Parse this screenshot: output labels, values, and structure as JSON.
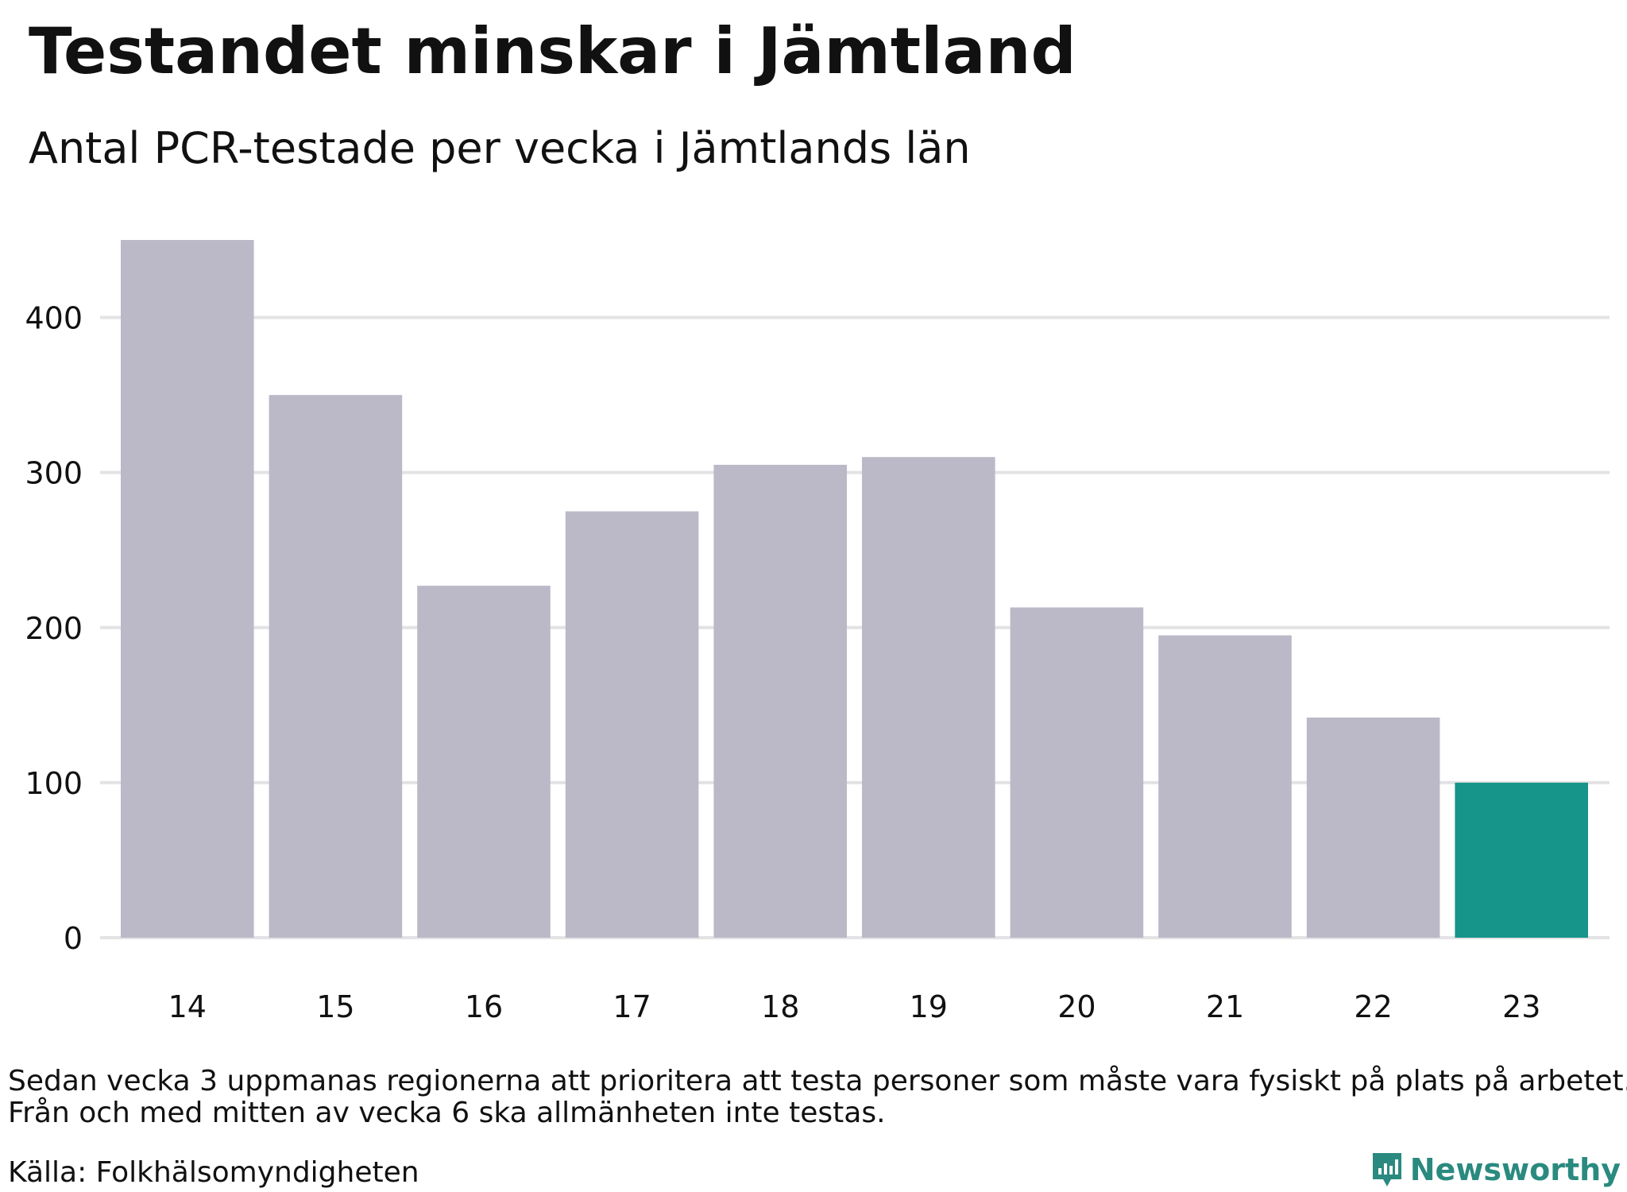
{
  "header": {
    "title": "Testandet minskar i Jämtland",
    "subtitle": "Antal PCR-testade per vecka i Jämtlands län"
  },
  "footer": {
    "note_line1": "Sedan vecka 3 uppmanas regionerna att prioritera att testa personer som måste vara fysiskt på plats på arbetet.",
    "note_line2": "Från och med mitten av vecka 6 ska allmänheten inte testas.",
    "source": "Källa: Folkhälsomyndigheten",
    "brand": "Newsworthy",
    "brand_icon": "newsworthy-logo-icon"
  },
  "colors": {
    "bar": "#bbb9c7",
    "highlight": "#16958a",
    "grid": "#e3e3e6",
    "brand": "#2a8a7f"
  },
  "chart_data": {
    "type": "bar",
    "title": "Testandet minskar i Jämtland",
    "subtitle": "Antal PCR-testade per vecka i Jämtlands län",
    "xlabel": "",
    "ylabel": "",
    "categories": [
      "14",
      "15",
      "16",
      "17",
      "18",
      "19",
      "20",
      "21",
      "22",
      "23"
    ],
    "values": [
      450,
      350,
      227,
      275,
      305,
      310,
      213,
      195,
      142,
      100
    ],
    "highlight_index": 9,
    "ylim": [
      0,
      450
    ],
    "yticks": [
      0,
      100,
      200,
      300,
      400
    ],
    "grid": true
  }
}
